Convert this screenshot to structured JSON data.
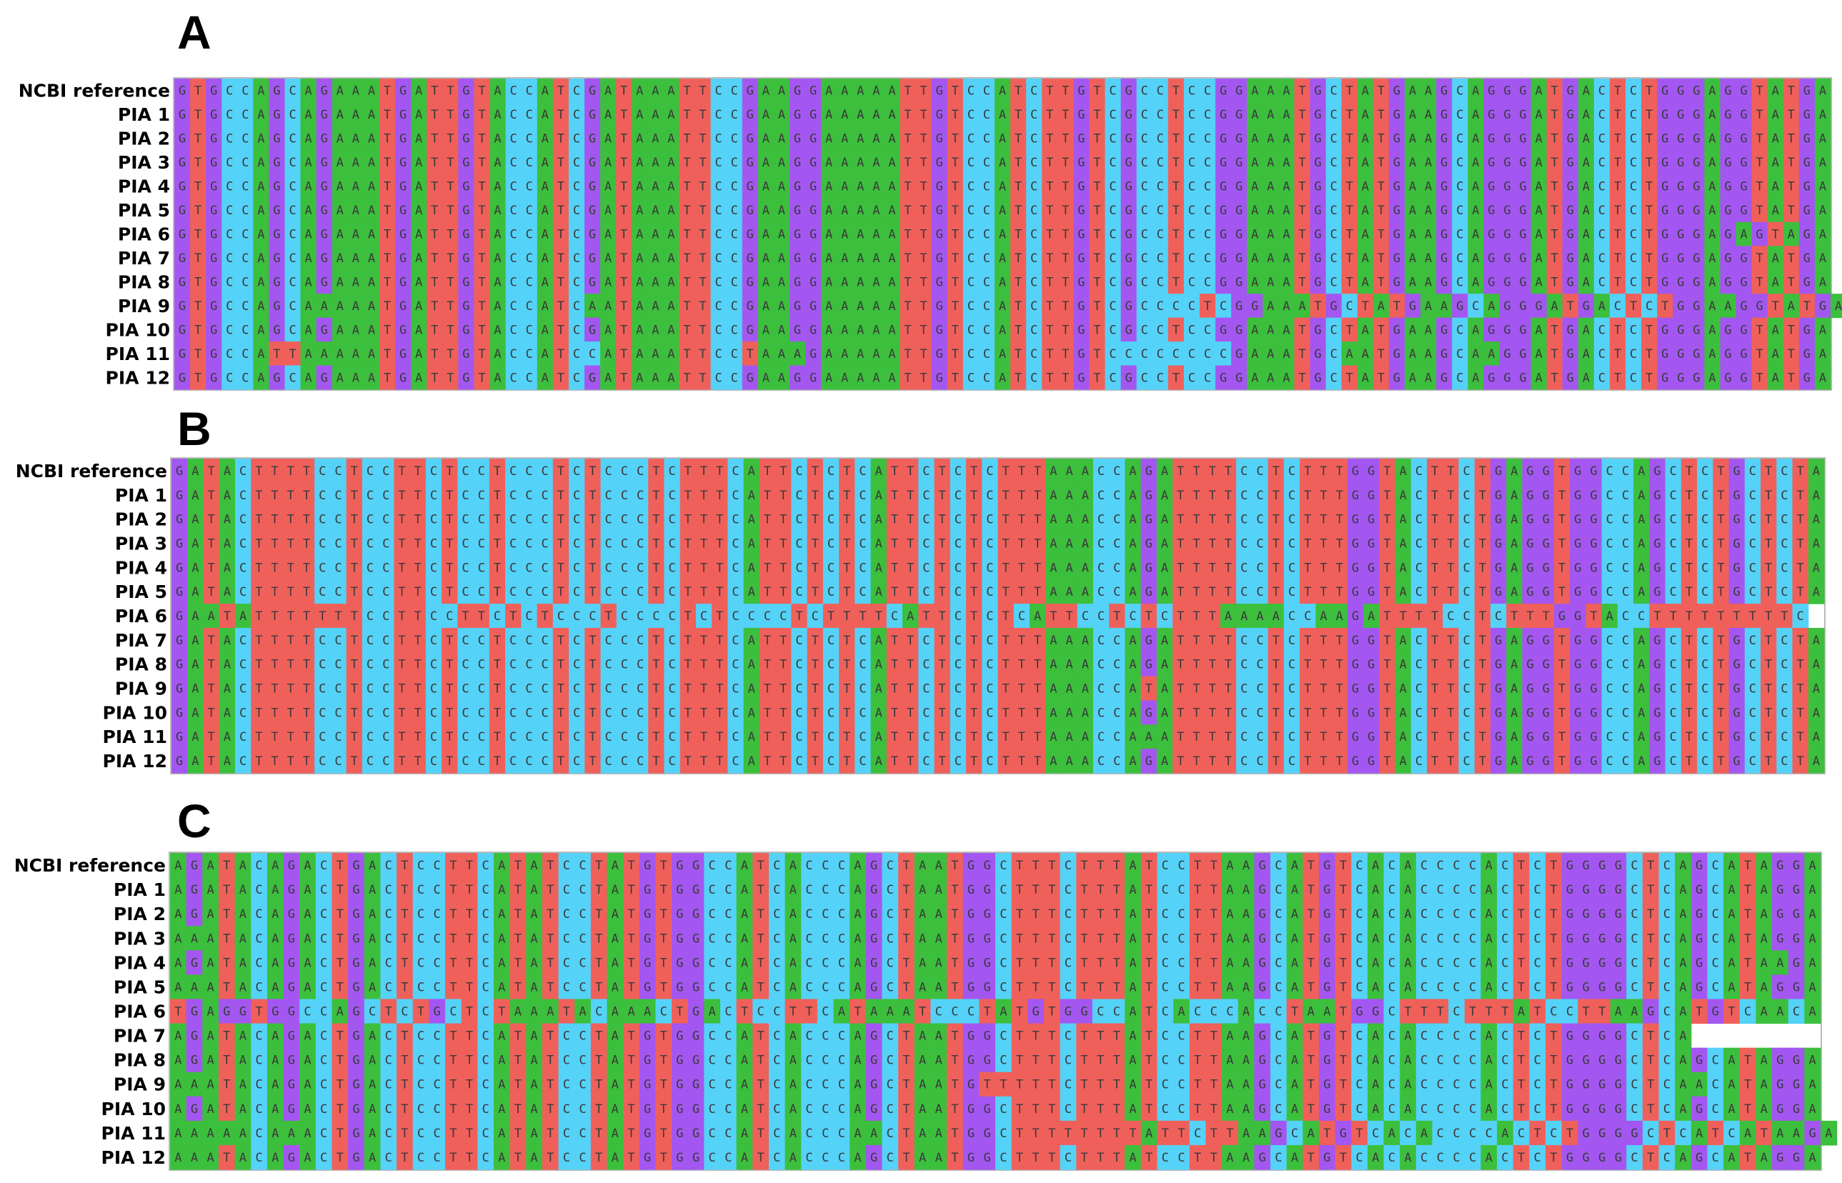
{
  "panels": [
    {
      "letter": "A",
      "rows": [
        {
          "label": "NCBI reference",
          "sequence": "GTGCCAGCAGAAATGATTGTACCATCGATAAATTCCGAAGGAAAAATTGTCCATCTTGTCGCCTCCGGAAATGCTATGAAGCAGGGATGACTCTGGGAGGTATGA"
        },
        {
          "label": "PIA 1",
          "sequence": "GTGCCAGCAGAAATGATTGTACCATCGATAAATTCCGAAGGAAAAATTGTCCATCTTGTCGCCTCCGGAAATGCTATGAAGCAGGGATGACTCTGGGAGGTATGA"
        },
        {
          "label": "PIA 2",
          "sequence": "GTGCCAGCAGAAATGATTGTACCATCGATAAATTCCGAAGGAAAAATTGTCCATCTTGTCGCCTCCGGAAATGCTATGAAGCAGGGATGACTCTGGGAGGTATGA"
        },
        {
          "label": "PIA 3",
          "sequence": "GTGCCAGCAGAAATGATTGTACCATCGATAAATTCCGAAGGAAAAATTGTCCATCTTGTCGCCTCCGGAAATGCTATGAAGCAGGGATGACTCTGGGAGGTATGA"
        },
        {
          "label": "PIA 4",
          "sequence": "GTGCCAGCAGAAATGATTGTACCATCGATAAATTCCGAAGGAAAAATTGTCCATCTTGTCGCCTCCGGAAATGCTATGAAGCAGGGATGACTCTGGGAGGTATGA"
        },
        {
          "label": "PIA 5",
          "sequence": "GTGCCAGCAGAAATGATTGTACCATCGATAAATTCCGAAGGAAAAATTGTCCATCTTGTCGCCTCCGGAAATGCTATGAAGCAGGGATGACTCTGGGAGGTATGA"
        },
        {
          "label": "PIA 6",
          "sequence": "GTGCCAGCAGAAATGATTGTACCATCGATAAATTCCGAAGGAAAAATTGTCCATCTTGTCGCCTCCGGAAATGCTATGAAGCAGGGATGACTCTGGGAGAGTAGA"
        },
        {
          "label": "PIA 7",
          "sequence": "GTGCCAGCAGAAATGATTGTACCATCGATAAATTCCGAAGGAAAAATTGTCCATCTTGTCGCCTCCGGAAATGCTATGAAGCAGGGATGACTCTGGGAGGTATGA"
        },
        {
          "label": "PIA 8",
          "sequence": "GTGCCAGCAGAAATGATTGTACCATCGATAAATTCCGAAGGAAAAATTGTCCATCTTGTCGCCTCCGGAAATGCTATGAAGCAGGGATGACTCTGGGAGGTATGA"
        },
        {
          "label": "PIA 9",
          "sequence": "GTGCCAGCAAAAATGATTGTACCATCAATAAATTCCGAAGGAAAAATTGTCCATCTTGTCGCCCCTCGGAAATGCTATGAAGCAGGGATGACTCTGGAAGGTATGA"
        },
        {
          "label": "PIA 10",
          "sequence": "GTGCCAGCAGAAATGATTGTACCATCGATAAATTCCGAAGGAAAAATTGTCCATCTTGTCGCCTCCGGAAATGCTATGAAGCAGGGATGACTCTGGGAGGTATGA"
        },
        {
          "label": "PIA 11",
          "sequence": "GTGCCATTAAAAATGATTGTACCATCCATAAATTCCTAAAGAAAAATTGTCCATCTTGTCCCCCCCCGAAATGCAATGAAGCAAGGATGACTCTGGGAGGTATGA"
        },
        {
          "label": "PIA 12",
          "sequence": "GTGCCAGCAGAAATGATTGTACCATCGATAAATTCCGAAGGAAAAATTGTCCATCTTGTCGCCTCCGGAAATGCTATGAAGCAGGGATGACTCTGGGAGGTATGA"
        }
      ]
    },
    {
      "letter": "B",
      "rows": [
        {
          "label": "NCBI reference",
          "sequence": "GATACTTTTCCTCCTTCTCCTCCCTCTCCCTCTTTCATTCTCTCATTCTCTCTTTAAACCAGATTTTCCTCTTTGGTACTTCTGAGGTGGCCAGCTCTGCTCTA"
        },
        {
          "label": "PIA 1",
          "sequence": "GATACTTTTCCTCCTTCTCCTCCCTCTCCCTCTTTCATTCTCTCATTCTCTCTTTAAACCAGATTTTCCTCTTTGGTACTTCTGAGGTGGCCAGCTCTGCTCTA"
        },
        {
          "label": "PIA 2",
          "sequence": "GATACTTTTCCTCCTTCTCCTCCCTCTCCCTCTTTCATTCTCTCATTCTCTCTTTAAACCAGATTTTCCTCTTTGGTACTTCTGAGGTGGCCAGCTCTGCTCTA"
        },
        {
          "label": "PIA 3",
          "sequence": "GATACTTTTCCTCCTTCTCCTCCCTCTCCCTCTTTCATTCTCTCATTCTCTCTTTAAACCAGATTTTCCTCTTTGGTACTTCTGAGGTGGCCAGCTCTGCTCTA"
        },
        {
          "label": "PIA 4",
          "sequence": "GATACTTTTCCTCCTTCTCCTCCCTCTCCCTCTTTCATTCTCTCATTCTCTCTTTAAACCAGATTTTCCTCTTTGGTACTTCTGAGGTGGCCAGCTCTGCTCTA"
        },
        {
          "label": "PIA 5",
          "sequence": "GATACTTTTCCTCCTTCTCCTCCCTCTCCCTCTTTCATTCTCTCATTCTCTCTTTAAACCAGATTTTCCTCTTTGGTACTTCTGAGGTGGCCAGCTCTGCTCTA"
        },
        {
          "label": "PIA 6",
          "sequence": "GAATATTTTTTTCCTTCCTTCTCTCCCTCCCCTCTCCCCTCTTTTCATTCTCTCATTCCTCTCTTTAAAACCAAGATTTTCCTCTTTGGTACCTTTTTTTTTC"
        },
        {
          "label": "PIA 7",
          "sequence": "GATACTTTTCCTCCTTCTCCTCCCTCTCCCTCTTTCATTCTCTCATTCTCTCTTTAAACCAGATTTTCCTCTTTGGTACTTCTGAGGTGGCCAGCTCTGCTCTA"
        },
        {
          "label": "PIA 8",
          "sequence": "GATACTTTTCCTCCTTCTCCTCCCTCTCCCTCTTTCATTCTCTCATTCTCTCTTTAAACCAGATTTTCCTCTTTGGTACTTCTGAGGTGGCCAGCTCTGCTCTA"
        },
        {
          "label": "PIA 9",
          "sequence": "GATACTTTTCCTCCTTCTCCTCCCTCTCCCTCTTTCATTCTCTCATTCTCTCTTTAAACCATATTTTCCTCTTTGGTACTTCTGAGGTGGCCAGCTCTGCTCTA"
        },
        {
          "label": "PIA 10",
          "sequence": "GATACTTTTCCTCCTTCTCCTCCCTCTCCCTCTTTCATTCTCTCATTCTCTCTTTAAACCAGATTTTCCTCTTTGGTACTTCTGAGGTGGCCAGCTCTGCTCTA"
        },
        {
          "label": "PIA 11",
          "sequence": "GATACTTTTCCTCCTTCTCCTCCCTCTCCCTCTTTCATTCTCTCATTCTCTCTTTAAACCAAATTTTCCTCTTTGGTACTTCTGAGGTGGCCAGCTCTGCTCTA"
        },
        {
          "label": "PIA 12",
          "sequence": "GATACTTTTCCTCCTTCTCCTCCCTCTCCCTCTTTCATTCTCTCATTCTCTCTTTAAACCAGATTTTCCTCTTTGGTACTTCTGAGGTGGCCAGCTCTGCTCTA"
        }
      ]
    },
    {
      "letter": "C",
      "rows": [
        {
          "label": "NCBI reference",
          "sequence": "AGATACAGACTGACTCCTTCATATCCTATGTGGCCATCACCCAGCTAATGGCTTTCTTTATCCTTAAGCATGTCACACCCCACTCTGGGGCTCAGCATAGGA"
        },
        {
          "label": "PIA 1",
          "sequence": "AGATACAGACTGACTCCTTCATATCCTATGTGGCCATCACCCAGCTAATGGCTTTCTTTATCCTTAAGCATGTCACACCCCACTCTGGGGCTCAGCATAGGA"
        },
        {
          "label": "PIA 2",
          "sequence": "AGATACAGACTGACTCCTTCATATCCTATGTGGCCATCACCCAGCTAATGGCTTTCTTTATCCTTAAGCATGTCACACCCCACTCTGGGGCTCAGCATAGGA"
        },
        {
          "label": "PIA 3",
          "sequence": "AAATACAGACTGACTCCTTCATATCCTATGTGGCCATCACCCAGCTAATGGCTTTCTTTATCCTTAAGCATGTCACACCCCACTCTGGGGCTCAGCATAGGA"
        },
        {
          "label": "PIA 4",
          "sequence": "AGATACAGACTGACTCCTTCATATCCTATGTGGCCATCACCCAGCTAATGGCTTTCTTTATCCTTAAGCATGTCACACCCCACTCTGGGGCTCAGCATAAGA"
        },
        {
          "label": "PIA 5",
          "sequence": "AAATACAGACTGACTCCTTCATATCCTATGTGGCCATCACCCAGCTAATGGCTTTCTTTATCCTTAAGCATGTCACACCCCACTCTGGGGCTCAGCATAGGA"
        },
        {
          "label": "PIA 6",
          "sequence": "TGAGGTGGCCAGCTCTGCTCTAAATACAAACTGACTCCTTCATAAATCCCTATGTGGCCATCACCCACCTAATGGCTTTCTTTATCCTTAAGCATGTCAACA"
        },
        {
          "label": "PIA 7",
          "sequence": "AGATACAGACTGACTCCTTCATATCCTATGTGGCCATCACCCAGCTAATGGCTTTCTTTATCCTTAAGCATGTCACACCCCACTCTGGGGCTCA"
        },
        {
          "label": "PIA 8",
          "sequence": "AGATACAGACTGACTCCTTCATATCCTATGTGGCCATCACCCAGCTAATGGCTTTCTTTATCCTTAAGCATGTCACACCCCACTCTGGGGCTCAGCATAGGA"
        },
        {
          "label": "PIA 9",
          "sequence": "AAATACAGACTGACTCCTTCATATCCTATGTGGCCATCACCCAGCTAATGTTTTTCTTTATCCTTAAGCATGTCACACCCCACTCTGGGGCTCAACATAGGA"
        },
        {
          "label": "PIA 10",
          "sequence": "AGATACAGACTGACTCCTTCATATCCTATGTGGCCATCACCCAGCTAATGGCTTTCTTTATCCTTAAGCATGTCACACCCCACTCTGGGGCTCAGCATAGGA"
        },
        {
          "label": "PIA 11",
          "sequence": "AAAAACAAACTGACTCCTTCATATCCTATGTGGCCATCACCCAACTAATGGCTTTTTTTTATTCTTAAGCATGTCACACCCCACTCTGGGGCTCATCATAAGA"
        },
        {
          "label": "PIA 12",
          "sequence": "AAATACAGACTGACTCCTTCATATCCTATGTGGCCATCACCCAGCTAATGGCTTTCTTTATCCTTAAGCATGTCACACCCCACTCTGGGGCTCAGCATAGGA"
        }
      ]
    }
  ]
}
